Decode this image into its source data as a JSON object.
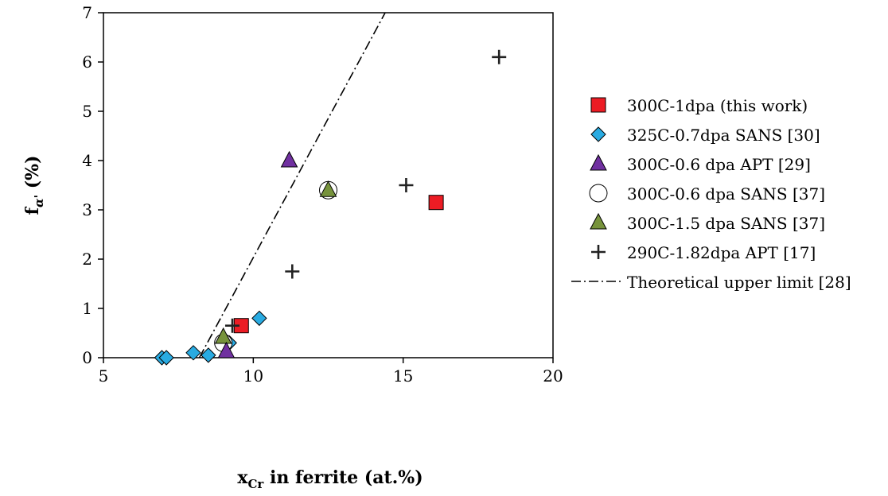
{
  "chart_data": {
    "type": "scatter",
    "xlabel": "x",
    "xlabel_sub": "Cr",
    "xlabel_rest": " in ferrite (at.%)",
    "ylabel_main": "f",
    "ylabel_sub": "α'",
    "ylabel_rest": " (%)",
    "xlim": [
      5,
      20
    ],
    "ylim": [
      0,
      7
    ],
    "x_ticks": [
      "5",
      "10",
      "15",
      "20"
    ],
    "y_ticks": [
      "0",
      "1",
      "2",
      "3",
      "4",
      "5",
      "6",
      "7"
    ],
    "grid": false,
    "legend_position": "right",
    "series": [
      {
        "name": "300C-1dpa (this work)",
        "marker": "square",
        "color": "#ec1c24",
        "points": [
          [
            9.6,
            0.65
          ],
          [
            16.1,
            3.15
          ]
        ]
      },
      {
        "name": "325C-0.7dpa SANS [30]",
        "marker": "diamond",
        "color": "#29abe2",
        "points": [
          [
            6.95,
            0.0
          ],
          [
            7.1,
            0.0
          ],
          [
            8.0,
            0.1
          ],
          [
            8.5,
            0.05
          ],
          [
            9.2,
            0.3
          ],
          [
            10.2,
            0.8
          ]
        ]
      },
      {
        "name": "300C-0.6 dpa APT [29]",
        "marker": "triangle",
        "color": "#7030a0",
        "points": [
          [
            9.1,
            0.13
          ],
          [
            11.2,
            4.0
          ]
        ]
      },
      {
        "name": "300C-0.6 dpa SANS [37]",
        "marker": "circle",
        "color": "#ffffff",
        "points": [
          [
            9.0,
            0.3
          ],
          [
            12.5,
            3.4
          ]
        ]
      },
      {
        "name": "300C-1.5 dpa SANS [37]",
        "marker": "triangle",
        "color": "#77933c",
        "points": [
          [
            9.0,
            0.42
          ],
          [
            12.5,
            3.4
          ]
        ]
      },
      {
        "name": "290C-1.82dpa APT [17]",
        "marker": "plus",
        "color": "#222222",
        "points": [
          [
            9.3,
            0.65
          ],
          [
            11.3,
            1.75
          ],
          [
            15.1,
            3.5
          ],
          [
            18.2,
            6.1
          ]
        ]
      }
    ],
    "theory_line": {
      "name": "Theoretical upper limit [28]",
      "points": [
        [
          8.2,
          0.0
        ],
        [
          14.4,
          7.0
        ]
      ]
    }
  }
}
